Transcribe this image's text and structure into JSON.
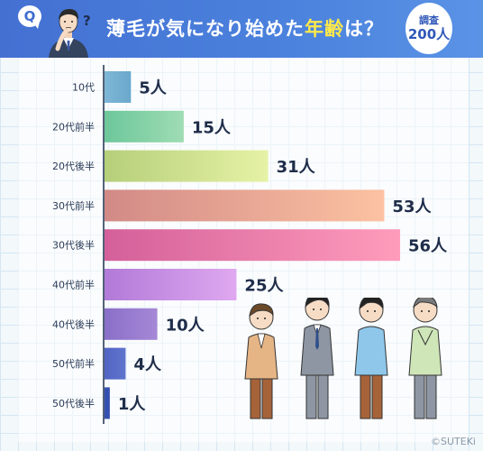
{
  "header": {
    "q_label": "Q",
    "title_part1": "薄毛が気になり始めた",
    "title_highlight": "年齢",
    "title_part2": "は？",
    "badge_line1": "調査",
    "badge_line2": "200人"
  },
  "colors": {
    "header_blue": "#4470d2",
    "highlight_yellow": "#ffe94a"
  },
  "chart_data": {
    "type": "bar",
    "orientation": "horizontal",
    "categories": [
      "10代",
      "20代前半",
      "20代後半",
      "30代前半",
      "30代後半",
      "40代前半",
      "40代後半",
      "50代前半",
      "50代後半"
    ],
    "values": [
      5,
      15,
      31,
      53,
      56,
      25,
      10,
      4,
      1
    ],
    "value_unit": "人",
    "value_labels": [
      "5人",
      "15人",
      "31人",
      "53人",
      "56人",
      "25人",
      "10人",
      "4人",
      "1人"
    ],
    "bar_colors": [
      [
        "#7fb7d6",
        "#6aa8cc"
      ],
      [
        "#6cc79a",
        "#9fdcb4"
      ],
      [
        "#b6cf7a",
        "#e6f2a6"
      ],
      [
        "#d28a86",
        "#fcc2a2"
      ],
      [
        "#d4609a",
        "#ff9cbb"
      ],
      [
        "#b27ad8",
        "#dfa8f0"
      ],
      [
        "#8a6fc9",
        "#a588d6"
      ],
      [
        "#5264c4",
        "#6075cc"
      ],
      [
        "#3550b0",
        "#3550b0"
      ]
    ],
    "grid": false,
    "legend": "none",
    "title": "薄毛が気になり始めた年齢は？"
  },
  "footer": {
    "copyright": "©SUTEKi"
  }
}
